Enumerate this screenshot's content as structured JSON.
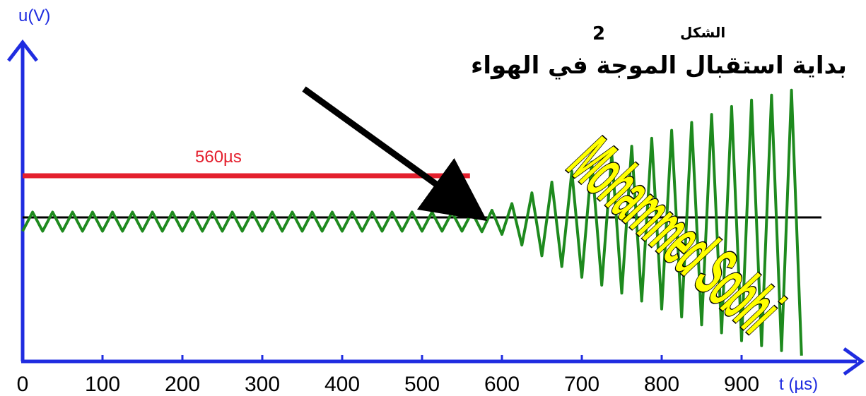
{
  "chart_data": {
    "type": "line",
    "title": "",
    "xlabel": "t (µs)",
    "ylabel": "u(V)",
    "x_ticks": [
      0,
      100,
      200,
      300,
      400,
      500,
      600,
      700,
      800,
      900
    ],
    "xlim": [
      0,
      1000
    ],
    "grid": false,
    "legend": "none",
    "duration_label": "560µs",
    "duration_us": 560,
    "signal_start_us": 570,
    "envelope": [
      {
        "t": 0,
        "amp": 0.06
      },
      {
        "t": 570,
        "amp": 0.06
      },
      {
        "t": 600,
        "amp": 0.08
      },
      {
        "t": 700,
        "amp": 0.35
      },
      {
        "t": 800,
        "amp": 0.55
      },
      {
        "t": 900,
        "amp": 0.75
      },
      {
        "t": 980,
        "amp": 0.85
      }
    ],
    "period_us": 25,
    "colors": {
      "signal": "#1e8a1e",
      "baseline": "#000000",
      "duration_bar": "#e4202e",
      "axes": "#1f2ce0"
    }
  },
  "figure_label": "الشكل",
  "figure_number": "2",
  "annotation": "بداية استقبال الموجة في الهواء",
  "watermark": "Mohammed Sobhi"
}
